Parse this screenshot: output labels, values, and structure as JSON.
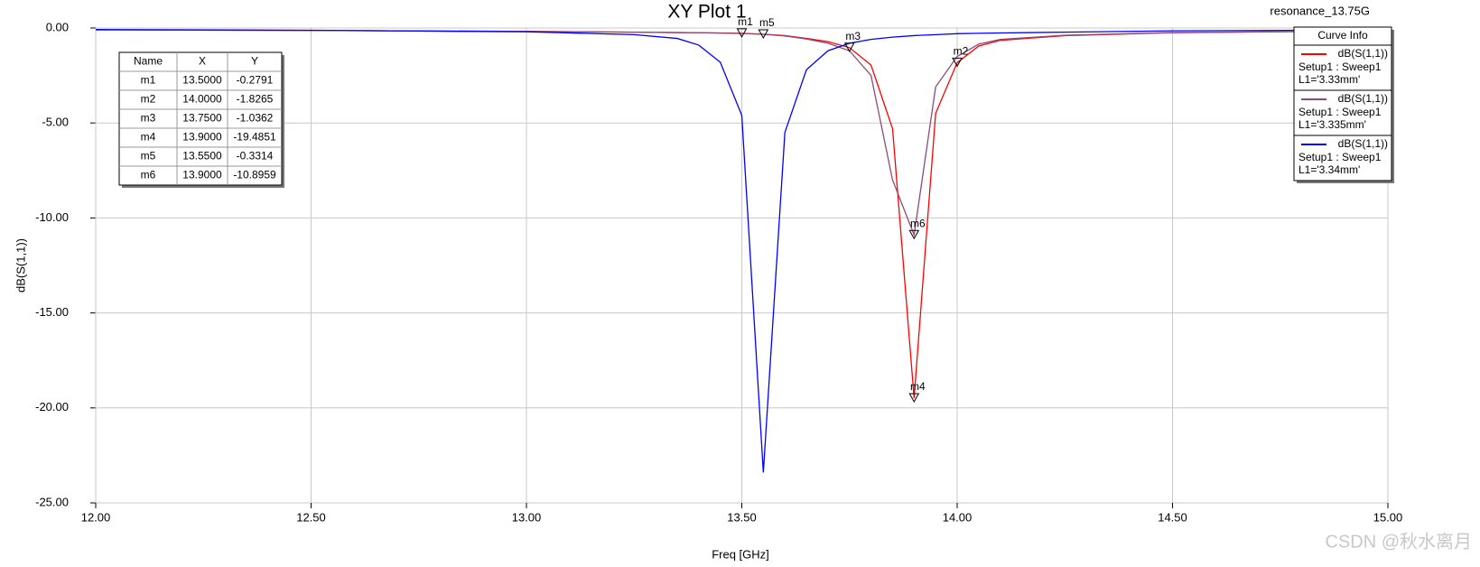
{
  "chart_data": {
    "type": "line",
    "title": "XY Plot 1",
    "design": "resonance_13.75G",
    "xlabel": "Freq [GHz]",
    "ylabel": "dB(S(1,1))",
    "legend_title": "Curve Info",
    "watermark": "CSDN @秋水离月",
    "grid": true,
    "legend": "top-right",
    "xlim": [
      12,
      15
    ],
    "ylim": [
      -25,
      0
    ],
    "xticks": [
      {
        "value": 12,
        "label": "12.00"
      },
      {
        "value": 12.5,
        "label": "12.50"
      },
      {
        "value": 13,
        "label": "13.00"
      },
      {
        "value": 13.5,
        "label": "13.50"
      },
      {
        "value": 14,
        "label": "14.00"
      },
      {
        "value": 14.5,
        "label": "14.50"
      },
      {
        "value": 15,
        "label": "15.00"
      }
    ],
    "yticks": [
      {
        "value": 0,
        "label": "0.00"
      },
      {
        "value": -5,
        "label": "-5.00"
      },
      {
        "value": -10,
        "label": "-10.00"
      },
      {
        "value": -15,
        "label": "-15.00"
      },
      {
        "value": -20,
        "label": "-20.00"
      },
      {
        "value": -25,
        "label": "-25.00"
      }
    ],
    "x": [
      12.0,
      12.5,
      13.0,
      13.25,
      13.35,
      13.4,
      13.45,
      13.5,
      13.55,
      13.6,
      13.65,
      13.7,
      13.75,
      13.8,
      13.85,
      13.9,
      13.95,
      14.0,
      14.05,
      14.1,
      14.25,
      14.5,
      15.0
    ],
    "series": [
      {
        "name": "dB(S(1,1))",
        "setup": "Setup1 : Sweep1",
        "variation": "L1='3.33mm'",
        "color": "#ff0000",
        "values": [
          -0.1,
          -0.13,
          -0.18,
          -0.22,
          -0.24,
          -0.25,
          -0.26,
          -0.2791,
          -0.33,
          -0.4,
          -0.55,
          -0.72,
          -1.0362,
          -1.95,
          -5.3,
          -19.4851,
          -4.5,
          -1.8265,
          -0.95,
          -0.65,
          -0.4,
          -0.25,
          -0.15
        ]
      },
      {
        "name": "dB(S(1,1))",
        "setup": "Setup1 : Sweep1",
        "variation": "L1='3.335mm'",
        "color": "#8b4c7a",
        "values": [
          -0.1,
          -0.13,
          -0.18,
          -0.22,
          -0.24,
          -0.25,
          -0.27,
          -0.29,
          -0.3314,
          -0.42,
          -0.58,
          -0.8,
          -1.2,
          -2.5,
          -8.0,
          -10.8959,
          -3.1,
          -1.5,
          -0.85,
          -0.6,
          -0.38,
          -0.24,
          -0.15
        ]
      },
      {
        "name": "dB(S(1,1))",
        "setup": "Setup1 : Sweep1",
        "variation": "L1='3.34mm'",
        "color": "#0000ff",
        "values": [
          -0.08,
          -0.12,
          -0.2,
          -0.35,
          -0.55,
          -0.9,
          -1.8,
          -4.6,
          -23.4,
          -5.5,
          -2.2,
          -1.2,
          -0.8,
          -0.6,
          -0.48,
          -0.4,
          -0.35,
          -0.3,
          -0.28,
          -0.26,
          -0.22,
          -0.15,
          -0.1
        ]
      }
    ],
    "markers": {
      "columns": [
        "Name",
        "X",
        "Y"
      ],
      "names": [
        "m1",
        "m2",
        "m3",
        "m4",
        "m5",
        "m6"
      ],
      "x": [
        13.5,
        14.0,
        13.75,
        13.9,
        13.55,
        13.9
      ],
      "x_labels": [
        "13.5000",
        "14.0000",
        "13.7500",
        "13.9000",
        "13.5500",
        "13.9000"
      ],
      "y": [
        -0.2791,
        -1.8265,
        -1.0362,
        -19.4851,
        -0.3314,
        -10.8959
      ]
    }
  }
}
